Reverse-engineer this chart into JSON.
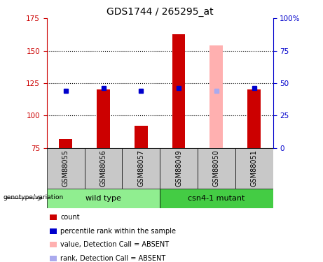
{
  "title": "GDS1744 / 265295_at",
  "samples": [
    "GSM88055",
    "GSM88056",
    "GSM88057",
    "GSM88049",
    "GSM88050",
    "GSM88051"
  ],
  "count_values": [
    82,
    120,
    92,
    163,
    154,
    120
  ],
  "percentile_values": [
    44,
    46,
    44,
    46,
    44,
    46
  ],
  "absent": [
    false,
    false,
    false,
    false,
    true,
    false
  ],
  "ylim_left": [
    75,
    175
  ],
  "ylim_right": [
    0,
    100
  ],
  "yticks_left": [
    75,
    100,
    125,
    150,
    175
  ],
  "yticks_right": [
    0,
    25,
    50,
    75,
    100
  ],
  "yticklabels_right": [
    "0",
    "25",
    "50",
    "75",
    "100%"
  ],
  "bar_bottom": 75,
  "bar_width": 0.35,
  "color_red": "#cc0000",
  "color_pink": "#ffb0b0",
  "color_blue": "#0000cc",
  "color_blue_light": "#aaaaee",
  "color_left_axis": "#cc0000",
  "color_right_axis": "#0000cc",
  "color_label_area": "#c8c8c8",
  "color_wildtype": "#90ee90",
  "color_mutant": "#44cc44",
  "wildtype_label": "wild type",
  "mutant_label": "csn4-1 mutant",
  "genotype_label": "genotype/variation",
  "legend_items": [
    {
      "label": "count",
      "color": "#cc0000"
    },
    {
      "label": "percentile rank within the sample",
      "color": "#0000cc"
    },
    {
      "label": "value, Detection Call = ABSENT",
      "color": "#ffb0b0"
    },
    {
      "label": "rank, Detection Call = ABSENT",
      "color": "#aaaaee"
    }
  ]
}
